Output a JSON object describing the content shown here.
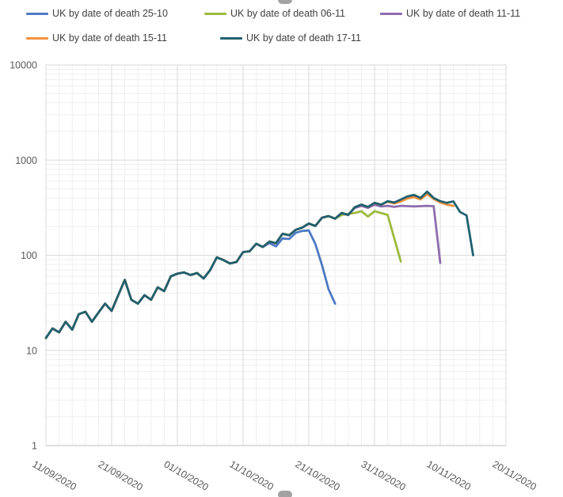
{
  "chart_data": {
    "type": "line",
    "title": "",
    "legend_position": "top",
    "grid": true,
    "axis_text_color": "#595959",
    "y_axis": {
      "scale": "log",
      "min": 1,
      "max": 10000,
      "tick_labels": [
        "1",
        "10",
        "100",
        "1000",
        "10000"
      ]
    },
    "x_axis": {
      "tick_labels": [
        "11/09/2020",
        "21/09/2020",
        "01/10/2020",
        "11/10/2020",
        "21/10/2020",
        "31/10/2020",
        "10/11/2020",
        "20/11/2020"
      ],
      "major_gridline_interval_days": 10,
      "minor_gridline_interval_days": 2,
      "span_days": 70
    },
    "dates": [
      "11/09",
      "12/09",
      "13/09",
      "14/09",
      "15/09",
      "16/09",
      "17/09",
      "18/09",
      "19/09",
      "20/09",
      "21/09",
      "22/09",
      "23/09",
      "24/09",
      "25/09",
      "26/09",
      "27/09",
      "28/09",
      "29/09",
      "30/09",
      "01/10",
      "02/10",
      "03/10",
      "04/10",
      "05/10",
      "06/10",
      "07/10",
      "08/10",
      "09/10",
      "10/10",
      "11/10",
      "12/10",
      "13/10",
      "14/10",
      "15/10",
      "16/10",
      "17/10",
      "18/10",
      "19/10",
      "20/10",
      "21/10",
      "22/10",
      "23/10",
      "24/10",
      "25/10",
      "26/10",
      "27/10",
      "28/10",
      "29/10",
      "30/10",
      "31/10",
      "01/11",
      "02/11",
      "03/11",
      "04/11",
      "05/11",
      "06/11",
      "07/11",
      "08/11",
      "09/11",
      "10/11",
      "11/11",
      "12/11",
      "13/11",
      "14/11",
      "15/11"
    ],
    "series": [
      {
        "name": "UK by date of death 25-10",
        "color": "#4E79C4",
        "values": [
          13.5,
          17,
          15.5,
          20,
          16.5,
          24,
          25.5,
          20,
          25,
          31,
          26,
          38,
          55,
          34,
          31,
          38,
          34,
          46,
          42,
          60,
          64,
          66,
          62,
          65,
          57,
          70,
          95,
          89,
          82,
          85,
          108,
          110,
          132,
          122,
          134,
          124,
          150,
          148,
          172,
          180,
          182,
          131,
          79,
          44,
          31
        ]
      },
      {
        "name": "UK by date of death 06-11",
        "color": "#9CBB3D",
        "values": [
          13.5,
          17,
          15.5,
          20,
          16.5,
          24,
          25.5,
          20,
          25,
          31,
          26,
          38,
          55,
          34,
          31,
          38,
          34,
          46,
          42,
          60,
          64,
          66,
          62,
          65,
          57,
          70,
          95,
          89,
          82,
          85,
          108,
          110,
          132,
          122,
          139,
          134,
          168,
          162,
          185,
          195,
          215,
          203,
          248,
          258,
          242,
          265,
          272,
          278,
          290,
          255,
          290,
          278,
          265,
          150,
          86
        ]
      },
      {
        "name": "UK by date of death 11-11",
        "color": "#8E6CAD",
        "values": [
          13.5,
          17,
          15.5,
          20,
          16.5,
          24,
          25.5,
          20,
          25,
          31,
          26,
          38,
          55,
          34,
          31,
          38,
          34,
          46,
          42,
          60,
          64,
          66,
          62,
          65,
          57,
          70,
          95,
          89,
          82,
          85,
          108,
          110,
          132,
          122,
          139,
          134,
          168,
          162,
          185,
          195,
          215,
          203,
          248,
          258,
          242,
          278,
          265,
          315,
          330,
          315,
          340,
          325,
          330,
          322,
          330,
          328,
          326,
          328,
          330,
          328,
          83
        ]
      },
      {
        "name": "UK by date of death 15-11",
        "color": "#F2913D",
        "values": [
          13.5,
          17,
          15.5,
          20,
          16.5,
          24,
          25.5,
          20,
          25,
          31,
          26,
          38,
          55,
          34,
          31,
          38,
          34,
          46,
          42,
          60,
          64,
          66,
          62,
          65,
          57,
          70,
          95,
          89,
          82,
          85,
          108,
          110,
          132,
          122,
          139,
          134,
          168,
          162,
          185,
          195,
          215,
          203,
          248,
          258,
          242,
          278,
          265,
          320,
          340,
          322,
          355,
          340,
          365,
          350,
          368,
          395,
          408,
          385,
          440,
          390,
          358,
          340,
          330
        ]
      },
      {
        "name": "UK by date of death 17-11",
        "color": "#20616F",
        "values": [
          13.5,
          17,
          15.5,
          20,
          16.5,
          24,
          25.5,
          20,
          25,
          31,
          26,
          38,
          55,
          34,
          31,
          38,
          34,
          46,
          42,
          60,
          64,
          66,
          62,
          65,
          57,
          70,
          95,
          89,
          82,
          85,
          108,
          110,
          132,
          122,
          139,
          134,
          168,
          162,
          185,
          195,
          215,
          203,
          248,
          258,
          242,
          278,
          265,
          320,
          340,
          322,
          355,
          340,
          370,
          358,
          385,
          415,
          430,
          400,
          466,
          400,
          370,
          355,
          368,
          285,
          262,
          100
        ]
      }
    ]
  }
}
